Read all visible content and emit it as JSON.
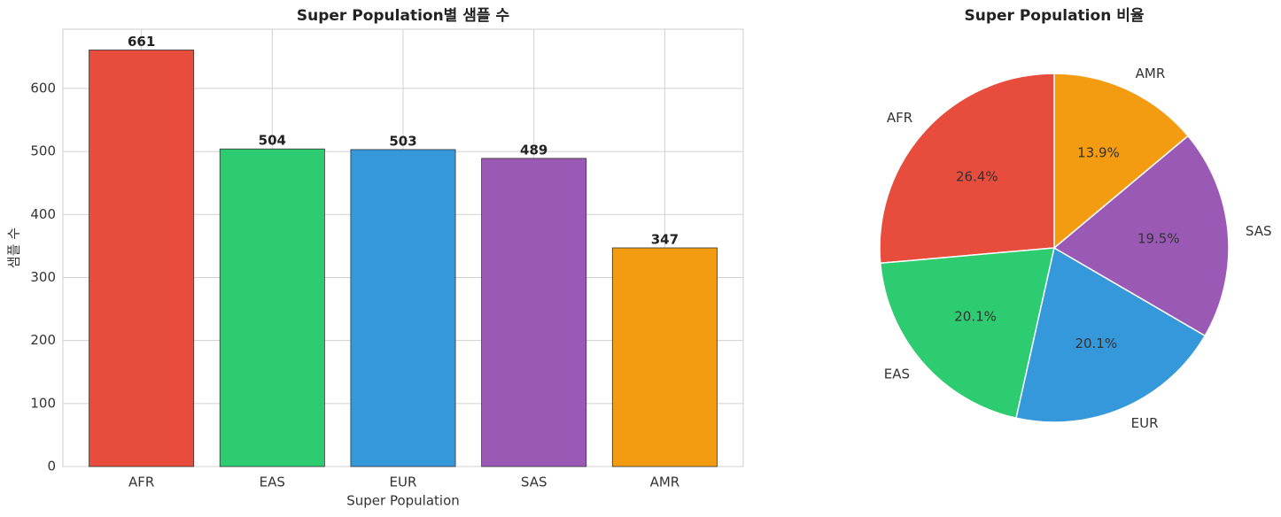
{
  "chart_data": [
    {
      "type": "bar",
      "title": "Super Population별 샘플 수",
      "xlabel": "Super Population",
      "ylabel": "샘플 수",
      "categories": [
        "AFR",
        "EAS",
        "EUR",
        "SAS",
        "AMR"
      ],
      "values": [
        661,
        504,
        503,
        489,
        347
      ],
      "colors": [
        "#e74c3c",
        "#2ecc71",
        "#3498db",
        "#9b59b6",
        "#f39c12"
      ],
      "ylim": [
        0,
        694
      ],
      "yticks": [
        0,
        100,
        200,
        300,
        400,
        500,
        600
      ],
      "grid": true
    },
    {
      "type": "pie",
      "title": "Super Population 비율",
      "categories": [
        "AFR",
        "EAS",
        "EUR",
        "SAS",
        "AMR"
      ],
      "values": [
        26.4,
        20.1,
        20.1,
        19.5,
        13.9
      ],
      "value_labels": [
        "26.4%",
        "20.1%",
        "20.1%",
        "19.5%",
        "13.9%"
      ],
      "colors": [
        "#e74c3c",
        "#2ecc71",
        "#3498db",
        "#9b59b6",
        "#f39c12"
      ]
    }
  ]
}
